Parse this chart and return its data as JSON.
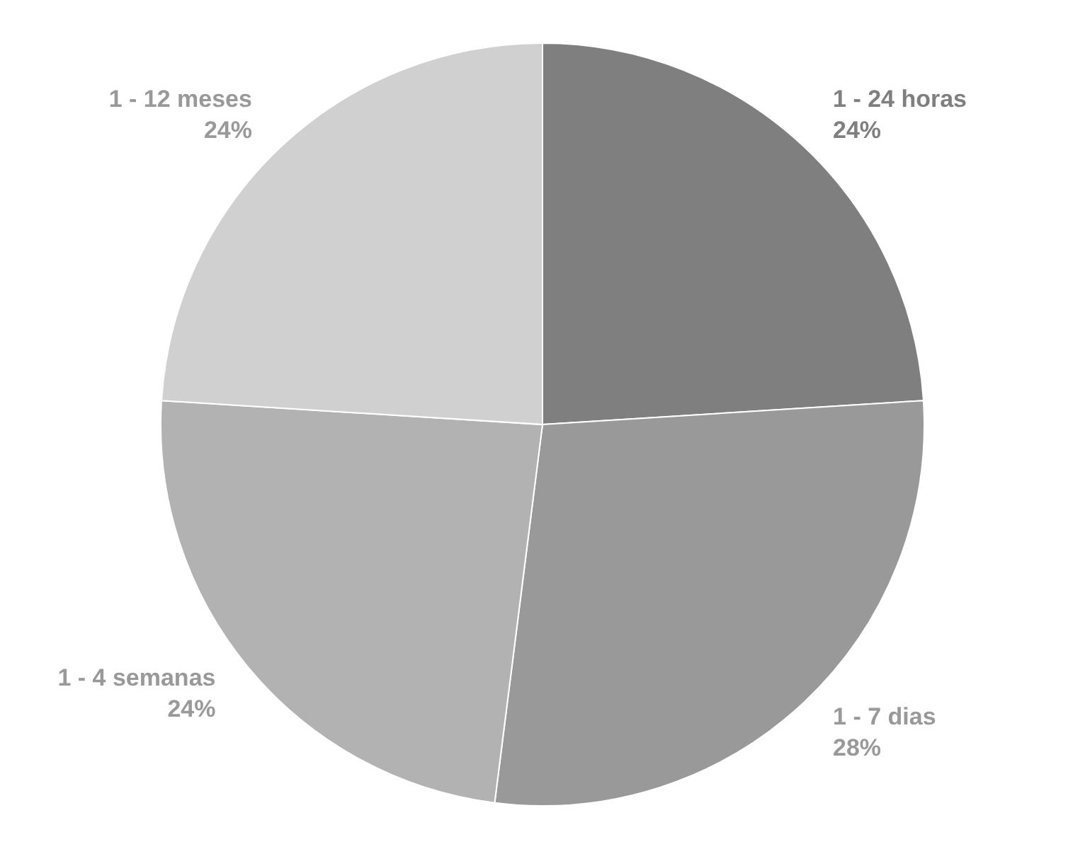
{
  "chart_data": {
    "type": "pie",
    "categories": [
      "1 - 24 horas",
      "1 - 7 dias",
      "1 - 4 semanas",
      "1 - 12 meses"
    ],
    "values": [
      24,
      28,
      24,
      24
    ],
    "colors": [
      "#7f7f7f",
      "#999999",
      "#b2b2b2",
      "#d0d0d0"
    ],
    "value_labels": [
      "24%",
      "28%",
      "24%",
      "24%"
    ],
    "legend": false
  }
}
